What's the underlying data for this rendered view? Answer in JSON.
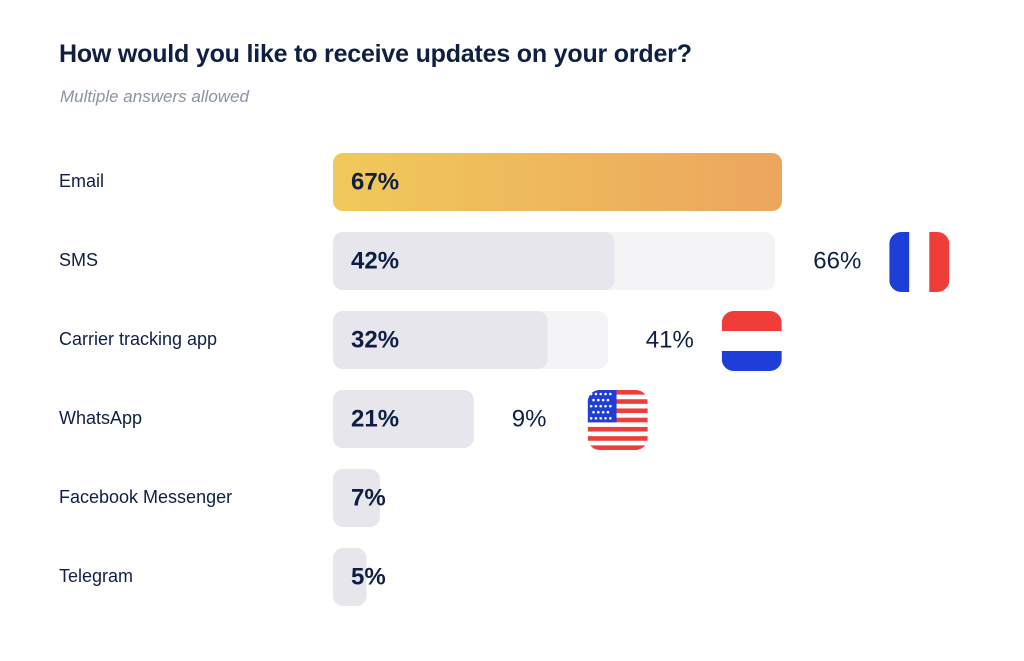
{
  "chart_data": {
    "type": "bar",
    "orientation": "horizontal",
    "title": "How would you like to receive updates on your order?",
    "subtitle": "Multiple answers allowed",
    "categories": [
      "Email",
      "SMS",
      "Carrier tracking app",
      "WhatsApp",
      "Facebook Messenger",
      "Telegram"
    ],
    "values": [
      67,
      42,
      32,
      21,
      7,
      5
    ],
    "value_labels": [
      "67%",
      "42%",
      "32%",
      "21%",
      "7%",
      "5%"
    ],
    "highlight_index": 0,
    "xlim": [
      0,
      67
    ],
    "grid": false,
    "comparisons": [
      {
        "category": "SMS",
        "value": 66,
        "label": "66%",
        "flag": "france-flag-icon"
      },
      {
        "category": "Carrier tracking app",
        "value": 41,
        "label": "41%",
        "flag": "netherlands-flag-icon"
      },
      {
        "category": "WhatsApp",
        "value": 9,
        "label": "9%",
        "flag": "usa-flag-icon"
      }
    ]
  },
  "colors": {
    "text": "#0f1f44",
    "subtitle": "#8a93a6",
    "bar": "#e6e6ec",
    "comparison_track": "#f4f4f6",
    "highlight_start": "#f0c95a",
    "highlight_end": "#eca65e",
    "france_blue": "#1d3ed8",
    "france_red": "#ef3d3a",
    "nl_red": "#ef3d3a",
    "nl_blue": "#1d3ed8",
    "us_red": "#ef3d3a",
    "us_blue": "#1d3ed8"
  }
}
